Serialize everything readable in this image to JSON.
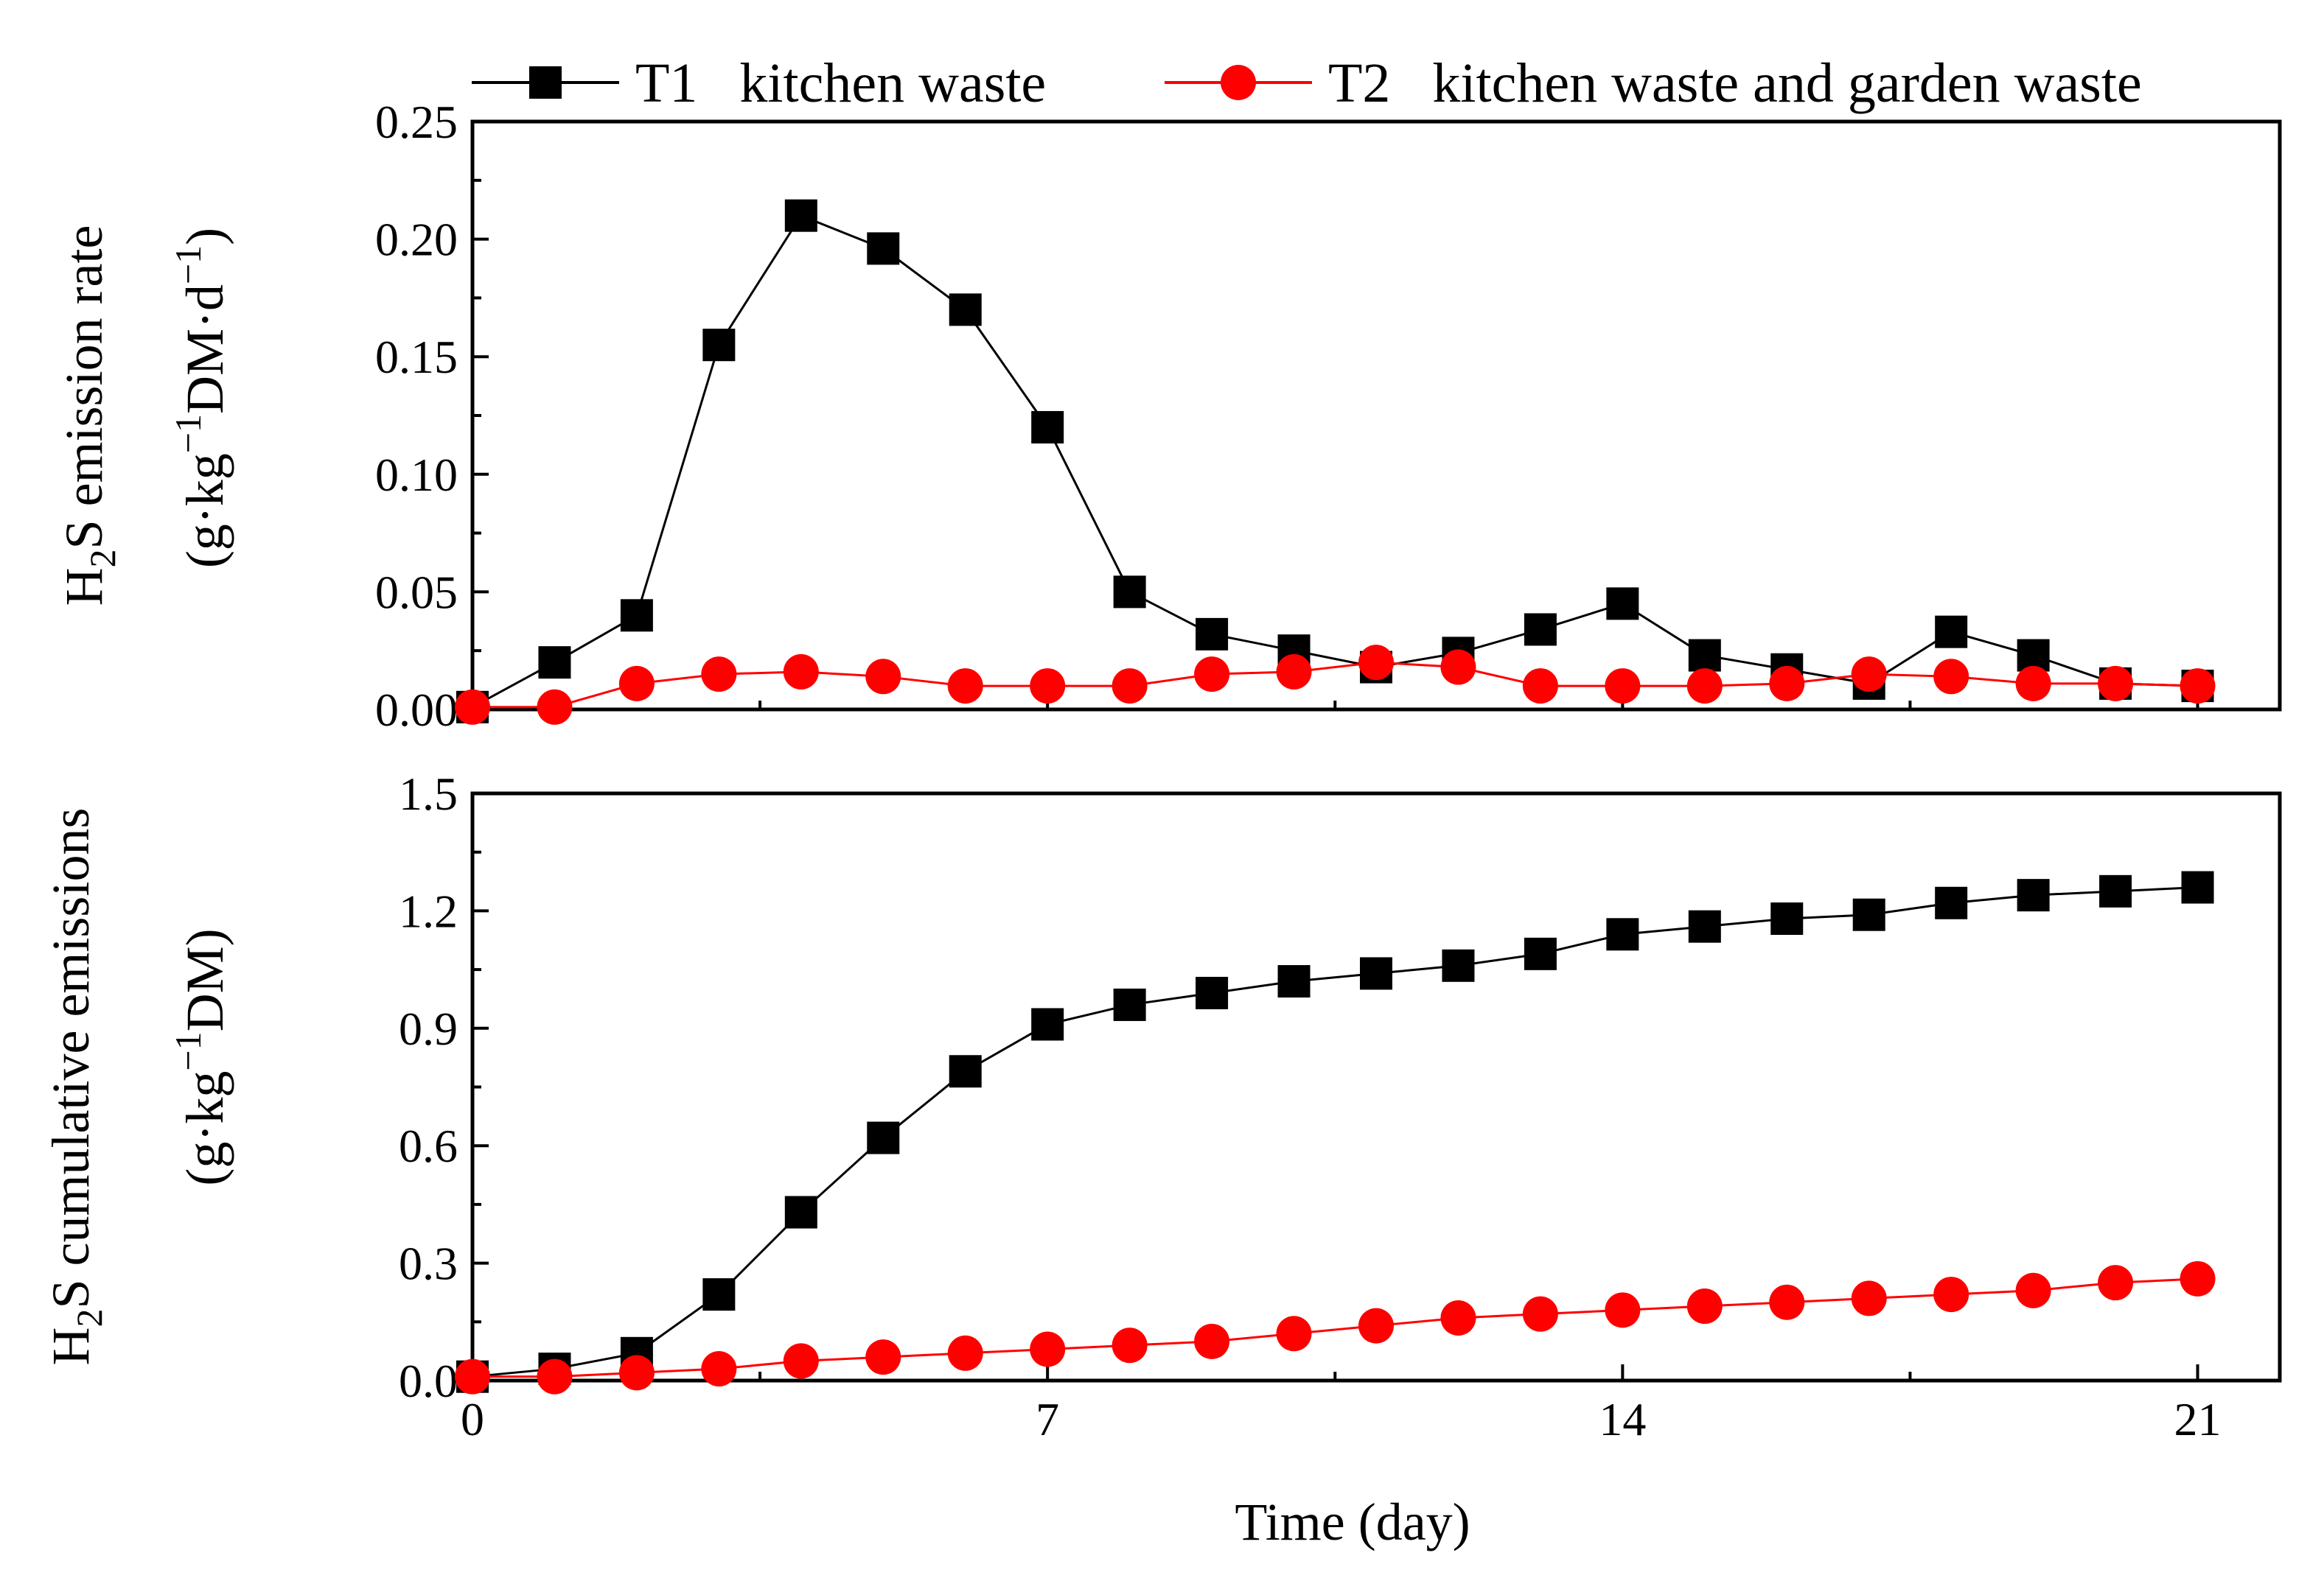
{
  "chart_data": {
    "type": "line",
    "x": [
      0,
      1,
      2,
      3,
      4,
      5,
      6,
      7,
      8,
      9,
      10,
      11,
      12,
      13,
      14,
      15,
      16,
      17,
      18,
      19,
      20,
      21
    ],
    "legend": [
      {
        "series": "T1",
        "label": "T1   kitchen waste",
        "color": "#000000",
        "marker": "square"
      },
      {
        "series": "T2",
        "label": "T2   kitchen waste and garden waste",
        "color": "#ff0000",
        "marker": "circle"
      }
    ],
    "panels": [
      {
        "id": "emission-rate",
        "ylabel_line1": "H2S emission rate",
        "ylabel_line2": "(g·kg−1DM·d−1)",
        "ylim": [
          0,
          0.25
        ],
        "yticks": [
          "0.00",
          "0.05",
          "0.10",
          "0.15",
          "0.20",
          "0.25"
        ],
        "series": [
          {
            "name": "T1",
            "values": [
              0.001,
              0.02,
              0.04,
              0.155,
              0.21,
              0.196,
              0.17,
              0.12,
              0.05,
              0.032,
              0.025,
              0.018,
              0.024,
              0.034,
              0.045,
              0.023,
              0.017,
              0.011,
              0.033,
              0.023,
              0.011,
              0.01
            ]
          },
          {
            "name": "T2",
            "values": [
              0.001,
              0.001,
              0.011,
              0.015,
              0.016,
              0.014,
              0.01,
              0.01,
              0.01,
              0.015,
              0.016,
              0.02,
              0.018,
              0.01,
              0.01,
              0.01,
              0.011,
              0.015,
              0.014,
              0.011,
              0.011,
              0.01
            ]
          }
        ]
      },
      {
        "id": "cumulative-emissions",
        "ylabel_line1": "H2S cumulative emissions",
        "ylabel_line2": "(g·kg−1DM)",
        "ylim": [
          0,
          1.5
        ],
        "yticks": [
          "0.0",
          "0.3",
          "0.6",
          "0.9",
          "1.2",
          "1.5"
        ],
        "series": [
          {
            "name": "T1",
            "values": [
              0.01,
              0.03,
              0.07,
              0.22,
              0.43,
              0.62,
              0.79,
              0.91,
              0.96,
              0.99,
              1.02,
              1.04,
              1.06,
              1.09,
              1.14,
              1.16,
              1.18,
              1.19,
              1.22,
              1.24,
              1.25,
              1.26
            ]
          },
          {
            "name": "T2",
            "values": [
              0.01,
              0.01,
              0.02,
              0.03,
              0.05,
              0.06,
              0.07,
              0.08,
              0.09,
              0.1,
              0.12,
              0.14,
              0.16,
              0.17,
              0.18,
              0.19,
              0.2,
              0.21,
              0.22,
              0.23,
              0.25,
              0.26
            ]
          }
        ]
      }
    ],
    "xlim": [
      0,
      22
    ],
    "xticks": [
      "0",
      "7",
      "14",
      "21"
    ],
    "xlabel": "Time (day)"
  }
}
